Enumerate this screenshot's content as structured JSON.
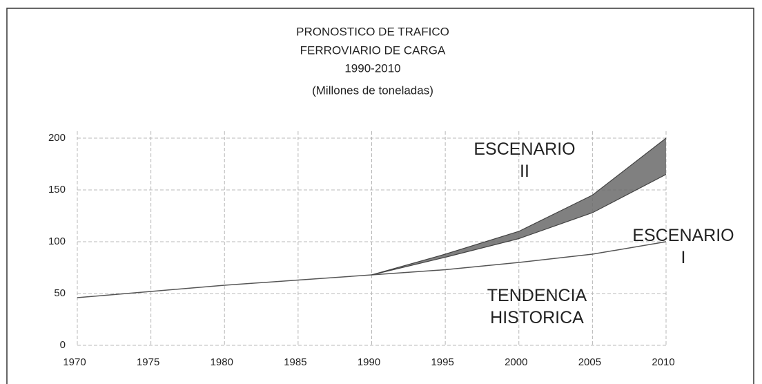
{
  "chart_data": {
    "type": "line",
    "title": [
      "PRONOSTICO DE TRAFICO",
      "FERROVIARIO DE CARGA",
      "1990-2010"
    ],
    "subtitle": "(Millones de toneladas)",
    "x": [
      1970,
      1975,
      1980,
      1985,
      1990,
      1995,
      2000,
      2005,
      2010
    ],
    "series": [
      {
        "name": "TENDENCIA HISTORICA",
        "color": "#555555",
        "values": [
          46,
          52,
          58,
          63,
          68,
          73,
          80,
          88,
          100
        ]
      },
      {
        "name": "ESCENARIO I",
        "color": "#444444",
        "values": [
          null,
          null,
          null,
          null,
          68,
          85,
          103,
          128,
          165
        ]
      },
      {
        "name": "ESCENARIO II",
        "color": "#444444",
        "values": [
          null,
          null,
          null,
          null,
          68,
          88,
          110,
          145,
          200
        ]
      }
    ],
    "band_color": "#6a6a6a",
    "xlim": [
      1970,
      2010
    ],
    "xticks": [
      1970,
      1975,
      1980,
      1985,
      1990,
      1995,
      2000,
      2005,
      2010
    ],
    "ylim": [
      0,
      200
    ],
    "yticks": [
      0,
      50,
      100,
      150,
      200
    ],
    "grid": true
  }
}
